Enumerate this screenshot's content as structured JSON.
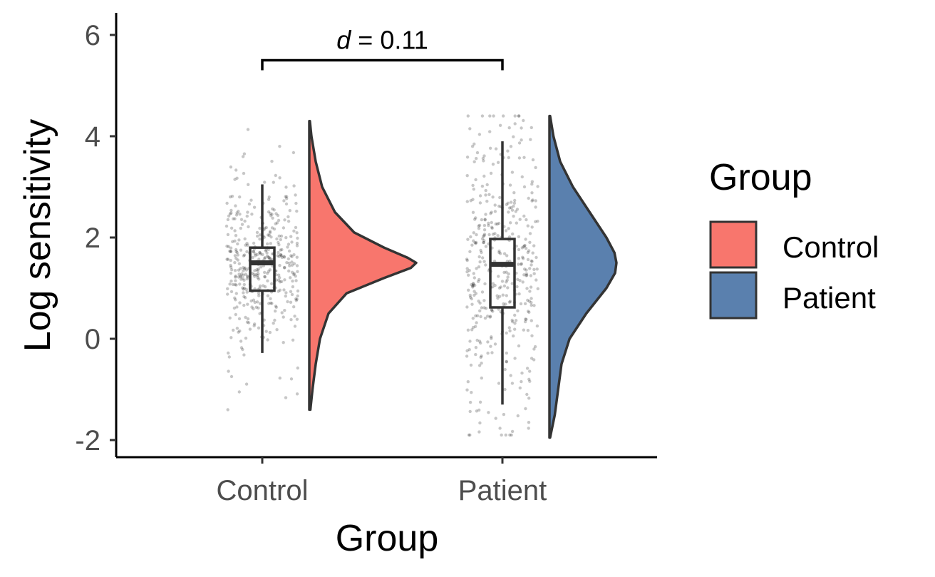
{
  "chart_data": {
    "type": "raincloud",
    "xlabel": "Group",
    "ylabel": "Log sensitivity",
    "ylim": [
      -2.3,
      6.3
    ],
    "yticks": [
      -2,
      0,
      2,
      4,
      6
    ],
    "ytick_labels": [
      "-2",
      "0",
      "2",
      "4",
      "6"
    ],
    "categories": [
      "Control",
      "Patient"
    ],
    "legend": {
      "title": "Group",
      "placement": "right",
      "entries": [
        "Control",
        "Patient"
      ]
    },
    "series": [
      {
        "name": "Control",
        "color": "#F8766D",
        "box": {
          "whisker_low": -0.28,
          "q1": 0.95,
          "median": 1.5,
          "q3": 1.8,
          "whisker_high": 3.05
        },
        "points_range": [
          -1.4,
          4.3
        ],
        "density": {
          "y": [
            -1.4,
            -1.0,
            -0.5,
            0.0,
            0.5,
            0.9,
            1.2,
            1.4,
            1.5,
            1.6,
            1.8,
            2.1,
            2.5,
            3.0,
            3.5,
            4.0,
            4.3
          ],
          "d": [
            0.01,
            0.03,
            0.06,
            0.1,
            0.18,
            0.35,
            0.7,
            0.95,
            1.0,
            0.92,
            0.7,
            0.42,
            0.24,
            0.12,
            0.06,
            0.02,
            0.005
          ]
        }
      },
      {
        "name": "Patient",
        "color": "#5A80AE",
        "box": {
          "whisker_low": -1.3,
          "q1": 0.62,
          "median": 1.47,
          "q3": 1.97,
          "whisker_high": 3.9
        },
        "points_range": [
          -1.9,
          4.4
        ],
        "density": {
          "y": [
            -1.95,
            -1.5,
            -1.0,
            -0.5,
            0.0,
            0.5,
            1.0,
            1.3,
            1.5,
            1.7,
            2.0,
            2.5,
            3.0,
            3.5,
            4.0,
            4.4
          ],
          "d": [
            0.01,
            0.08,
            0.13,
            0.18,
            0.3,
            0.55,
            0.85,
            0.98,
            1.0,
            0.97,
            0.85,
            0.6,
            0.35,
            0.16,
            0.06,
            0.01
          ]
        }
      }
    ],
    "annotation": {
      "text_italic": "d",
      "text_rest": " = 0.11",
      "between": [
        "Control",
        "Patient"
      ],
      "y": 5.5
    }
  }
}
